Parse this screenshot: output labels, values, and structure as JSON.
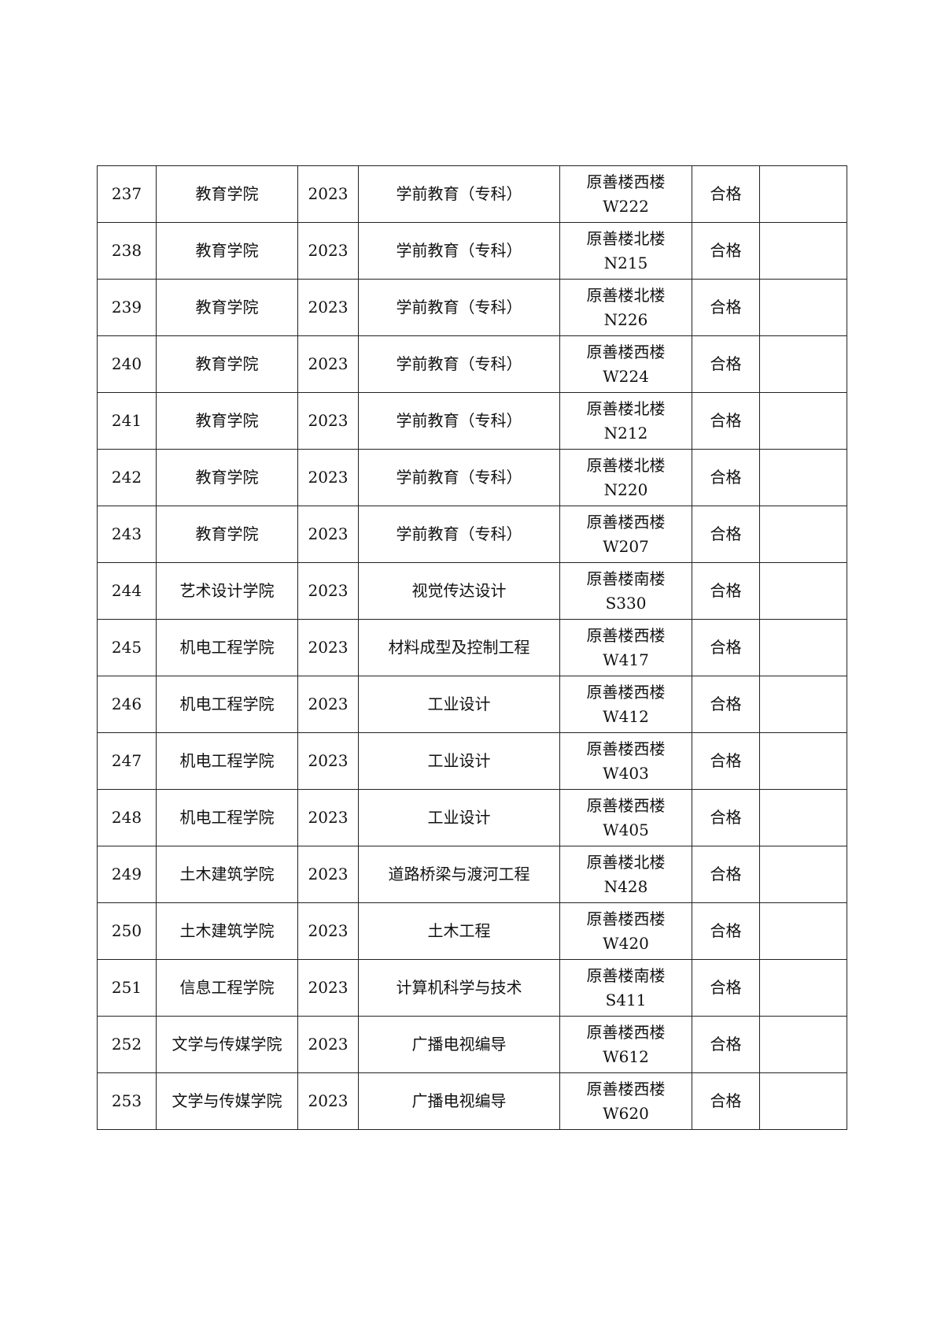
{
  "rows": [
    {
      "no": "237",
      "college": "教育学院",
      "year": "2023",
      "major": "学前教育（专科）",
      "building": "原善楼西楼",
      "room": "W222",
      "result": "合格",
      "note": ""
    },
    {
      "no": "238",
      "college": "教育学院",
      "year": "2023",
      "major": "学前教育（专科）",
      "building": "原善楼北楼",
      "room": "N215",
      "result": "合格",
      "note": ""
    },
    {
      "no": "239",
      "college": "教育学院",
      "year": "2023",
      "major": "学前教育（专科）",
      "building": "原善楼北楼",
      "room": "N226",
      "result": "合格",
      "note": ""
    },
    {
      "no": "240",
      "college": "教育学院",
      "year": "2023",
      "major": "学前教育（专科）",
      "building": "原善楼西楼",
      "room": "W224",
      "result": "合格",
      "note": ""
    },
    {
      "no": "241",
      "college": "教育学院",
      "year": "2023",
      "major": "学前教育（专科）",
      "building": "原善楼北楼",
      "room": "N212",
      "result": "合格",
      "note": ""
    },
    {
      "no": "242",
      "college": "教育学院",
      "year": "2023",
      "major": "学前教育（专科）",
      "building": "原善楼北楼",
      "room": "N220",
      "result": "合格",
      "note": ""
    },
    {
      "no": "243",
      "college": "教育学院",
      "year": "2023",
      "major": "学前教育（专科）",
      "building": "原善楼西楼",
      "room": "W207",
      "result": "合格",
      "note": ""
    },
    {
      "no": "244",
      "college": "艺术设计学院",
      "year": "2023",
      "major": "视觉传达设计",
      "building": "原善楼南楼",
      "room": "S330",
      "result": "合格",
      "note": ""
    },
    {
      "no": "245",
      "college": "机电工程学院",
      "year": "2023",
      "major": "材料成型及控制工程",
      "building": "原善楼西楼",
      "room": "W417",
      "result": "合格",
      "note": ""
    },
    {
      "no": "246",
      "college": "机电工程学院",
      "year": "2023",
      "major": "工业设计",
      "building": "原善楼西楼",
      "room": "W412",
      "result": "合格",
      "note": ""
    },
    {
      "no": "247",
      "college": "机电工程学院",
      "year": "2023",
      "major": "工业设计",
      "building": "原善楼西楼",
      "room": "W403",
      "result": "合格",
      "note": ""
    },
    {
      "no": "248",
      "college": "机电工程学院",
      "year": "2023",
      "major": "工业设计",
      "building": "原善楼西楼",
      "room": "W405",
      "result": "合格",
      "note": ""
    },
    {
      "no": "249",
      "college": "土木建筑学院",
      "year": "2023",
      "major": "道路桥梁与渡河工程",
      "building": "原善楼北楼",
      "room": "N428",
      "result": "合格",
      "note": ""
    },
    {
      "no": "250",
      "college": "土木建筑学院",
      "year": "2023",
      "major": "土木工程",
      "building": "原善楼西楼",
      "room": "W420",
      "result": "合格",
      "note": ""
    },
    {
      "no": "251",
      "college": "信息工程学院",
      "year": "2023",
      "major": "计算机科学与技术",
      "building": "原善楼南楼",
      "room": "S411",
      "result": "合格",
      "note": ""
    },
    {
      "no": "252",
      "college": "文学与传媒学院",
      "year": "2023",
      "major": "广播电视编导",
      "building": "原善楼西楼",
      "room": "W612",
      "result": "合格",
      "note": ""
    },
    {
      "no": "253",
      "college": "文学与传媒学院",
      "year": "2023",
      "major": "广播电视编导",
      "building": "原善楼西楼",
      "room": "W620",
      "result": "合格",
      "note": ""
    }
  ]
}
